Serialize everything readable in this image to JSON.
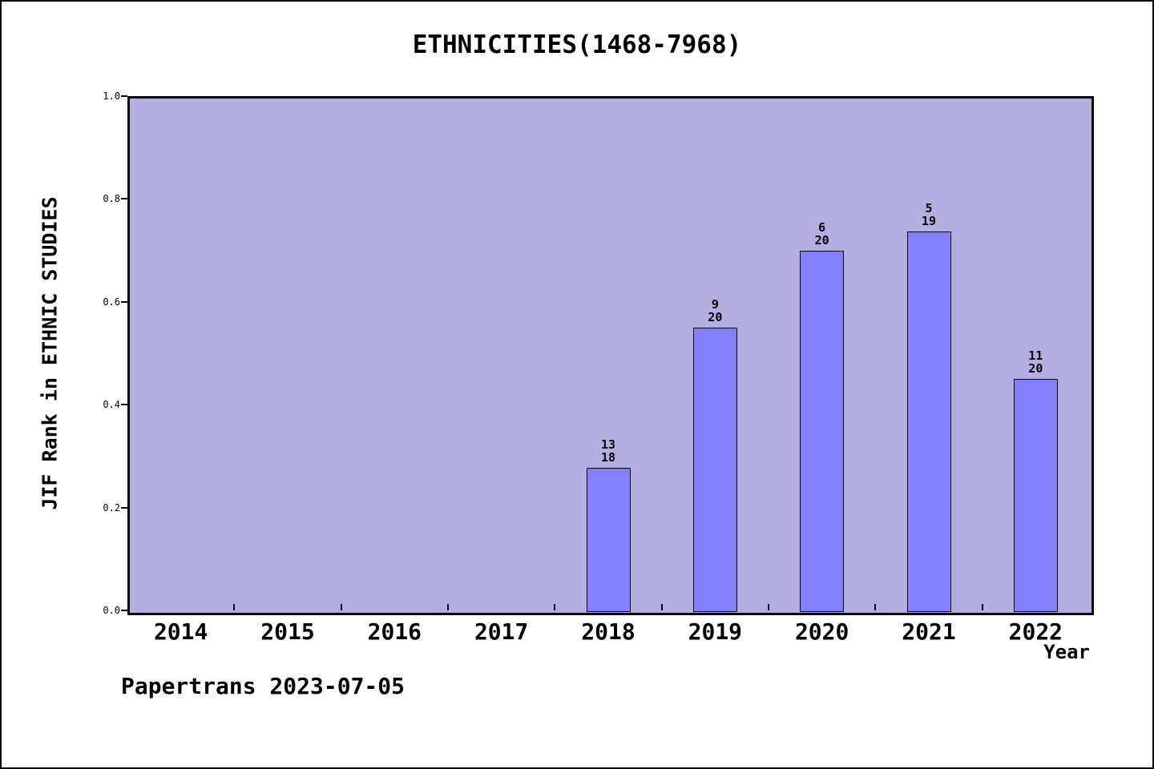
{
  "page": {
    "footer": "Papertrans 2023-07-05"
  },
  "chart_data": {
    "type": "bar",
    "title": "ETHNICITIES(1468-7968)",
    "xlabel": "Year",
    "ylabel": "JIF Rank in ETHNIC STUDIES",
    "categories": [
      "2014",
      "2015",
      "2016",
      "2017",
      "2018",
      "2019",
      "2020",
      "2021",
      "2022"
    ],
    "values": [
      null,
      null,
      null,
      null,
      0.278,
      0.55,
      0.7,
      0.737,
      0.45
    ],
    "bar_labels": [
      null,
      null,
      null,
      null,
      [
        "13",
        "18"
      ],
      [
        "9",
        "20"
      ],
      [
        "6",
        "20"
      ],
      [
        "5",
        "19"
      ],
      [
        "11",
        "20"
      ]
    ],
    "yticks": [
      0.0,
      0.2,
      0.4,
      0.6,
      0.8,
      1.0
    ],
    "ylim": [
      0.0,
      1.0
    ],
    "grid": false,
    "legend": false,
    "colors": {
      "plot_background": "#b5aee3",
      "bar_fill": "#8280fb",
      "bar_edge": "#000000",
      "text": "#000000"
    }
  }
}
